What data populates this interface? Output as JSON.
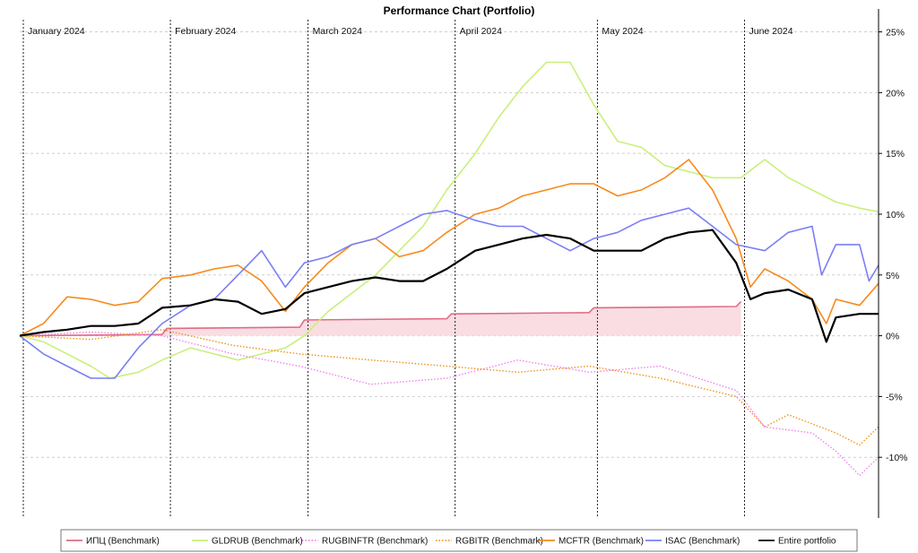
{
  "chart_data": {
    "type": "line",
    "title": "Performance Chart (Portfolio)",
    "xlabel": "",
    "ylabel": "",
    "x_range": [
      "2024-01-01",
      "2024-06-30"
    ],
    "ylim": [
      -15,
      26
    ],
    "y_ticks": [
      25,
      20,
      15,
      10,
      5,
      0,
      -5,
      -10
    ],
    "y_tick_labels": [
      "25%",
      "20%",
      "15%",
      "10%",
      "5%",
      "0%",
      "-5%",
      "-10%"
    ],
    "month_labels": [
      {
        "label": "January 2024",
        "date": "2024-01-01"
      },
      {
        "label": "February 2024",
        "date": "2024-02-01"
      },
      {
        "label": "March 2024",
        "date": "2024-03-01"
      },
      {
        "label": "April 2024",
        "date": "2024-04-01"
      },
      {
        "label": "May 2024",
        "date": "2024-05-01"
      },
      {
        "label": "June 2024",
        "date": "2024-06-01"
      }
    ],
    "grid": true,
    "legend_position": "bottom",
    "shaded_band": {
      "series": "ИПЦ (Benchmark)",
      "from": 0,
      "color": "#f9dde2"
    },
    "series": [
      {
        "name": "ИПЦ (Benchmark)",
        "color": "#e06b84",
        "style": "solid",
        "points": [
          [
            "2024-01-01",
            0
          ],
          [
            "2024-01-31",
            0.1
          ],
          [
            "2024-02-01",
            0.6
          ],
          [
            "2024-02-29",
            0.7
          ],
          [
            "2024-03-01",
            1.3
          ],
          [
            "2024-03-31",
            1.4
          ],
          [
            "2024-04-01",
            1.8
          ],
          [
            "2024-04-30",
            1.9
          ],
          [
            "2024-05-01",
            2.3
          ],
          [
            "2024-05-31",
            2.4
          ],
          [
            "2024-06-01",
            2.8
          ]
        ]
      },
      {
        "name": "GLDRUB (Benchmark)",
        "color": "#c8f07a",
        "style": "solid",
        "points": [
          [
            "2024-01-01",
            0
          ],
          [
            "2024-01-06",
            -0.5
          ],
          [
            "2024-01-11",
            -1.5
          ],
          [
            "2024-01-16",
            -2.5
          ],
          [
            "2024-01-20",
            -3.5
          ],
          [
            "2024-01-26",
            -3
          ],
          [
            "2024-01-31",
            -2
          ],
          [
            "2024-02-06",
            -1
          ],
          [
            "2024-02-11",
            -1.5
          ],
          [
            "2024-02-16",
            -2
          ],
          [
            "2024-02-21",
            -1.5
          ],
          [
            "2024-02-26",
            -1
          ],
          [
            "2024-03-01",
            0
          ],
          [
            "2024-03-06",
            2
          ],
          [
            "2024-03-11",
            3.5
          ],
          [
            "2024-03-16",
            5
          ],
          [
            "2024-03-21",
            7
          ],
          [
            "2024-03-26",
            9
          ],
          [
            "2024-03-31",
            12
          ],
          [
            "2024-04-06",
            15
          ],
          [
            "2024-04-11",
            18
          ],
          [
            "2024-04-16",
            20.5
          ],
          [
            "2024-04-21",
            22.5
          ],
          [
            "2024-04-26",
            22.5
          ],
          [
            "2024-05-01",
            19
          ],
          [
            "2024-05-06",
            16
          ],
          [
            "2024-05-11",
            15.5
          ],
          [
            "2024-05-16",
            14
          ],
          [
            "2024-05-21",
            13.5
          ],
          [
            "2024-05-26",
            13
          ],
          [
            "2024-06-01",
            13
          ],
          [
            "2024-06-06",
            14.5
          ],
          [
            "2024-06-11",
            13
          ],
          [
            "2024-06-16",
            12
          ],
          [
            "2024-06-21",
            11
          ],
          [
            "2024-06-26",
            10.5
          ],
          [
            "2024-06-30",
            10.2
          ]
        ]
      },
      {
        "name": "RUGBINFTR (Benchmark)",
        "color": "#ee82ee",
        "style": "dotted",
        "points": [
          [
            "2024-01-01",
            0
          ],
          [
            "2024-01-16",
            0.3
          ],
          [
            "2024-01-31",
            0
          ],
          [
            "2024-02-15",
            -1.5
          ],
          [
            "2024-02-29",
            -2.5
          ],
          [
            "2024-03-15",
            -4
          ],
          [
            "2024-03-31",
            -3.5
          ],
          [
            "2024-04-15",
            -2
          ],
          [
            "2024-04-30",
            -3
          ],
          [
            "2024-05-15",
            -2.5
          ],
          [
            "2024-05-31",
            -4.5
          ],
          [
            "2024-06-06",
            -7.5
          ],
          [
            "2024-06-16",
            -8
          ],
          [
            "2024-06-21",
            -9.5
          ],
          [
            "2024-06-26",
            -11.5
          ],
          [
            "2024-06-30",
            -10
          ]
        ]
      },
      {
        "name": "RGBITR (Benchmark)",
        "color": "#f0921a",
        "style": "dotted",
        "points": [
          [
            "2024-01-01",
            0
          ],
          [
            "2024-01-16",
            -0.3
          ],
          [
            "2024-01-31",
            0.5
          ],
          [
            "2024-02-15",
            -0.8
          ],
          [
            "2024-02-29",
            -1.5
          ],
          [
            "2024-03-15",
            -2
          ],
          [
            "2024-03-31",
            -2.5
          ],
          [
            "2024-04-15",
            -3
          ],
          [
            "2024-04-30",
            -2.5
          ],
          [
            "2024-05-15",
            -3.5
          ],
          [
            "2024-05-31",
            -5
          ],
          [
            "2024-06-06",
            -7.5
          ],
          [
            "2024-06-11",
            -6.5
          ],
          [
            "2024-06-21",
            -8
          ],
          [
            "2024-06-26",
            -9
          ],
          [
            "2024-06-30",
            -7.5
          ]
        ]
      },
      {
        "name": "MCFTR (Benchmark)",
        "color": "#f68a1e",
        "style": "solid",
        "points": [
          [
            "2024-01-01",
            0
          ],
          [
            "2024-01-06",
            1
          ],
          [
            "2024-01-11",
            3.2
          ],
          [
            "2024-01-16",
            3
          ],
          [
            "2024-01-21",
            2.5
          ],
          [
            "2024-01-26",
            2.8
          ],
          [
            "2024-01-31",
            4.7
          ],
          [
            "2024-02-06",
            5
          ],
          [
            "2024-02-11",
            5.5
          ],
          [
            "2024-02-16",
            5.8
          ],
          [
            "2024-02-21",
            4.5
          ],
          [
            "2024-02-26",
            2
          ],
          [
            "2024-03-01",
            4
          ],
          [
            "2024-03-06",
            6
          ],
          [
            "2024-03-11",
            7.5
          ],
          [
            "2024-03-16",
            8
          ],
          [
            "2024-03-21",
            6.5
          ],
          [
            "2024-03-26",
            7
          ],
          [
            "2024-03-31",
            8.5
          ],
          [
            "2024-04-06",
            10
          ],
          [
            "2024-04-11",
            10.5
          ],
          [
            "2024-04-16",
            11.5
          ],
          [
            "2024-04-21",
            12
          ],
          [
            "2024-04-26",
            12.5
          ],
          [
            "2024-05-01",
            12.5
          ],
          [
            "2024-05-06",
            11.5
          ],
          [
            "2024-05-11",
            12
          ],
          [
            "2024-05-16",
            13
          ],
          [
            "2024-05-21",
            14.5
          ],
          [
            "2024-05-26",
            12
          ],
          [
            "2024-05-31",
            8
          ],
          [
            "2024-06-03",
            4
          ],
          [
            "2024-06-06",
            5.5
          ],
          [
            "2024-06-11",
            4.5
          ],
          [
            "2024-06-16",
            3
          ],
          [
            "2024-06-19",
            1
          ],
          [
            "2024-06-21",
            3
          ],
          [
            "2024-06-26",
            2.5
          ],
          [
            "2024-06-30",
            4.3
          ]
        ]
      },
      {
        "name": "ISAC (Benchmark)",
        "color": "#7a7ef5",
        "style": "solid",
        "points": [
          [
            "2024-01-01",
            0
          ],
          [
            "2024-01-06",
            -1.5
          ],
          [
            "2024-01-11",
            -2.5
          ],
          [
            "2024-01-16",
            -3.5
          ],
          [
            "2024-01-21",
            -3.5
          ],
          [
            "2024-01-26",
            -1
          ],
          [
            "2024-01-31",
            1
          ],
          [
            "2024-02-06",
            2.5
          ],
          [
            "2024-02-11",
            3
          ],
          [
            "2024-02-16",
            5
          ],
          [
            "2024-02-21",
            7
          ],
          [
            "2024-02-26",
            4
          ],
          [
            "2024-03-01",
            6
          ],
          [
            "2024-03-06",
            6.5
          ],
          [
            "2024-03-11",
            7.5
          ],
          [
            "2024-03-16",
            8
          ],
          [
            "2024-03-21",
            9
          ],
          [
            "2024-03-26",
            10
          ],
          [
            "2024-03-31",
            10.3
          ],
          [
            "2024-04-06",
            9.5
          ],
          [
            "2024-04-11",
            9
          ],
          [
            "2024-04-16",
            9
          ],
          [
            "2024-04-21",
            8
          ],
          [
            "2024-04-26",
            7
          ],
          [
            "2024-05-01",
            8
          ],
          [
            "2024-05-06",
            8.5
          ],
          [
            "2024-05-11",
            9.5
          ],
          [
            "2024-05-16",
            10
          ],
          [
            "2024-05-21",
            10.5
          ],
          [
            "2024-05-26",
            9
          ],
          [
            "2024-05-31",
            7.5
          ],
          [
            "2024-06-06",
            7
          ],
          [
            "2024-06-11",
            8.5
          ],
          [
            "2024-06-16",
            9
          ],
          [
            "2024-06-18",
            5
          ],
          [
            "2024-06-21",
            7.5
          ],
          [
            "2024-06-26",
            7.5
          ],
          [
            "2024-06-28",
            4.5
          ],
          [
            "2024-06-30",
            5.8
          ]
        ]
      },
      {
        "name": "Entire portfolio",
        "color": "#000000",
        "style": "solid",
        "points": [
          [
            "2024-01-01",
            0
          ],
          [
            "2024-01-06",
            0.3
          ],
          [
            "2024-01-11",
            0.5
          ],
          [
            "2024-01-16",
            0.8
          ],
          [
            "2024-01-21",
            0.8
          ],
          [
            "2024-01-26",
            1
          ],
          [
            "2024-01-31",
            2.3
          ],
          [
            "2024-02-06",
            2.5
          ],
          [
            "2024-02-11",
            3
          ],
          [
            "2024-02-16",
            2.8
          ],
          [
            "2024-02-21",
            1.8
          ],
          [
            "2024-02-26",
            2.2
          ],
          [
            "2024-03-01",
            3.5
          ],
          [
            "2024-03-06",
            4
          ],
          [
            "2024-03-11",
            4.5
          ],
          [
            "2024-03-16",
            4.8
          ],
          [
            "2024-03-21",
            4.5
          ],
          [
            "2024-03-26",
            4.5
          ],
          [
            "2024-03-31",
            5.5
          ],
          [
            "2024-04-06",
            7
          ],
          [
            "2024-04-11",
            7.5
          ],
          [
            "2024-04-16",
            8
          ],
          [
            "2024-04-21",
            8.3
          ],
          [
            "2024-04-26",
            8
          ],
          [
            "2024-05-01",
            7
          ],
          [
            "2024-05-06",
            7
          ],
          [
            "2024-05-11",
            7
          ],
          [
            "2024-05-16",
            8
          ],
          [
            "2024-05-21",
            8.5
          ],
          [
            "2024-05-26",
            8.7
          ],
          [
            "2024-05-31",
            6
          ],
          [
            "2024-06-03",
            3
          ],
          [
            "2024-06-06",
            3.5
          ],
          [
            "2024-06-11",
            3.8
          ],
          [
            "2024-06-16",
            3
          ],
          [
            "2024-06-19",
            -0.5
          ],
          [
            "2024-06-21",
            1.5
          ],
          [
            "2024-06-26",
            1.8
          ],
          [
            "2024-06-30",
            1.8
          ]
        ]
      }
    ]
  }
}
